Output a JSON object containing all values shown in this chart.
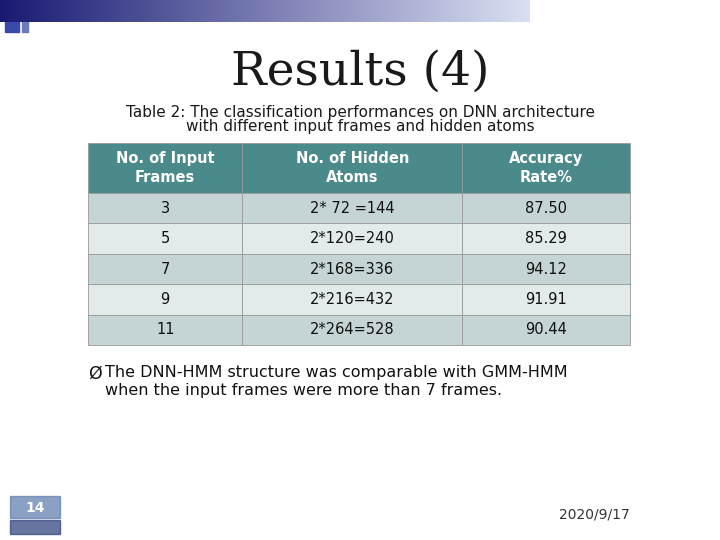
{
  "title": "Results (4)",
  "subtitle_line1": "Table 2: The classification performances on DNN architecture",
  "subtitle_line2": "with different input frames and hidden atoms",
  "header": [
    "No. of Input\nFrames",
    "No. of Hidden\nAtoms",
    "Accuracy\nRate%"
  ],
  "rows": [
    [
      "3",
      "2* 72 =144",
      "87.50"
    ],
    [
      "5",
      "2*120=240",
      "85.29"
    ],
    [
      "7",
      "2*168=336",
      "94.12"
    ],
    [
      "9",
      "2*216=432",
      "91.91"
    ],
    [
      "11",
      "2*264=528",
      "90.44"
    ]
  ],
  "header_bg": "#4a8a8a",
  "header_fg": "#ffffff",
  "row_bg_odd": "#c5d5d5",
  "row_bg_even": "#e2eaea",
  "bg_color": "#ffffff",
  "bullet_text_line1": "The DNN-HMM structure was comparable with GMM-HMM",
  "bullet_text_line2": "when the input frames were more than 7 frames.",
  "footer_text": "2020/9/17",
  "page_num": "14",
  "title_fontsize": 34,
  "subtitle_fontsize": 11,
  "header_fontsize": 10.5,
  "cell_fontsize": 10.5,
  "bullet_fontsize": 11.5
}
